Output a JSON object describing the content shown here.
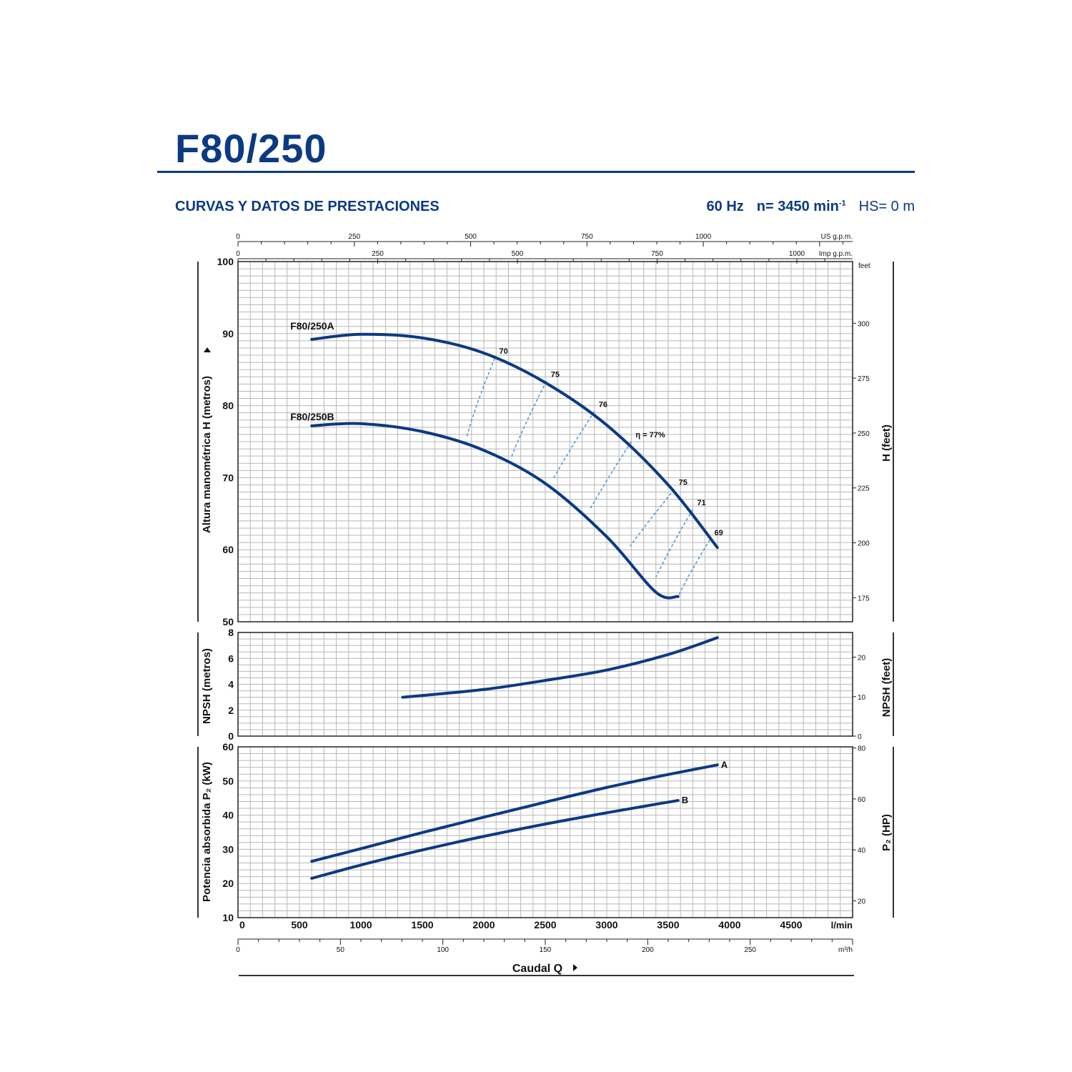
{
  "header": {
    "title": "F80/250",
    "subtitle": "CURVAS Y DATOS DE PRESTACIONES",
    "frequency": "60 Hz",
    "speed_prefix": "n= 3450 min",
    "speed_exponent": "-1",
    "suction": "HS= 0 m"
  },
  "colors": {
    "curve": "#0b3a82",
    "efficiency": "#3a8fd6",
    "grid": "#b8b8b8",
    "frame": "#222222"
  },
  "chart_data": [
    {
      "type": "line",
      "title": "",
      "x_unit": "l/min",
      "xlim": [
        0,
        5000
      ],
      "ylabel": "Altura manométrica H (metros)",
      "ylim": [
        50,
        100
      ],
      "y_ticks": [
        "50",
        "60",
        "70",
        "80",
        "90",
        "100"
      ],
      "y2label": "H (feet)",
      "y2_unit": "feet",
      "y2_ticks": [
        "175",
        "200",
        "225",
        "250",
        "275",
        "300"
      ],
      "top_axis_1": {
        "unit": "US g.p.m.",
        "ticks": [
          "0",
          "250",
          "500",
          "750",
          "1000"
        ],
        "max": 1320.9
      },
      "top_axis_2": {
        "unit": "Imp g.p.m.",
        "ticks": [
          "0",
          "250",
          "500",
          "750",
          "1000"
        ],
        "max": 1099.8
      },
      "series": [
        {
          "name": "F80/250A",
          "x": [
            600,
            1000,
            1500,
            2000,
            2500,
            3000,
            3500,
            3900
          ],
          "y": [
            89.2,
            89.9,
            89.4,
            87.3,
            83.2,
            77.3,
            69.0,
            60.3
          ]
        },
        {
          "name": "F80/250B",
          "x": [
            600,
            1000,
            1500,
            2000,
            2500,
            3000,
            3400,
            3580
          ],
          "y": [
            77.2,
            77.5,
            76.4,
            73.8,
            69.2,
            61.8,
            54.1,
            53.5
          ]
        }
      ],
      "efficiency": {
        "labels": [
          "70",
          "75",
          "76",
          "η = 77%",
          "75",
          "71",
          "69"
        ],
        "lines": [
          {
            "top": [
              2090,
              86.6
            ],
            "bottom": [
              1860,
              75.6
            ]
          },
          {
            "top": [
              2510,
              83.4
            ],
            "bottom": [
              2220,
              72.7
            ]
          },
          {
            "top": [
              2900,
              79.2
            ],
            "bottom": [
              2560,
              69.7
            ]
          },
          {
            "top": [
              3200,
              75.0
            ],
            "bottom": [
              2860,
              65.5
            ]
          },
          {
            "top": [
              3550,
              68.4
            ],
            "bottom": [
              3190,
              60.5
            ]
          },
          {
            "top": [
              3700,
              65.6
            ],
            "bottom": [
              3400,
              56.2
            ]
          },
          {
            "top": [
              3840,
              61.4
            ],
            "bottom": [
              3580,
              53.5
            ]
          }
        ]
      }
    },
    {
      "type": "line",
      "ylabel": "NPSH (metros)",
      "ylim": [
        0,
        8
      ],
      "y_ticks": [
        "0",
        "2",
        "4",
        "6",
        "8"
      ],
      "y2label": "NPSH (feet)",
      "y2_ticks": [
        "0",
        "10",
        "20"
      ],
      "series": [
        {
          "x": [
            1340,
            2000,
            2500,
            3000,
            3500,
            3900
          ],
          "y": [
            3.0,
            3.6,
            4.3,
            5.1,
            6.3,
            7.6
          ]
        }
      ]
    },
    {
      "type": "line",
      "ylabel": "Potencia absorbida P₂ (kW)",
      "ylim": [
        10,
        60
      ],
      "y_ticks": [
        "10",
        "20",
        "30",
        "40",
        "50",
        "60"
      ],
      "y2label": "P₂ (HP)",
      "y2_ticks": [
        "20",
        "40",
        "60",
        "80"
      ],
      "series": [
        {
          "name": "A",
          "x": [
            600,
            1000,
            1500,
            2000,
            2500,
            3000,
            3500,
            3900
          ],
          "y": [
            26.5,
            30.2,
            34.9,
            39.4,
            43.8,
            48.1,
            51.9,
            54.7
          ]
        },
        {
          "name": "B",
          "x": [
            600,
            1000,
            1500,
            2000,
            2500,
            3000,
            3400,
            3580
          ],
          "y": [
            21.5,
            25.4,
            29.8,
            33.8,
            37.4,
            40.7,
            43.2,
            44.3
          ]
        }
      ],
      "xlabel": "Caudal Q",
      "x_unit": "l/min",
      "x_ticks": [
        "0",
        "500",
        "1000",
        "1500",
        "2000",
        "2500",
        "3000",
        "3500",
        "4000",
        "4500"
      ],
      "bottom_axis_2": {
        "unit": "m³/h",
        "ticks": [
          "0",
          "50",
          "100",
          "150",
          "200",
          "250"
        ],
        "max": 300
      }
    }
  ]
}
